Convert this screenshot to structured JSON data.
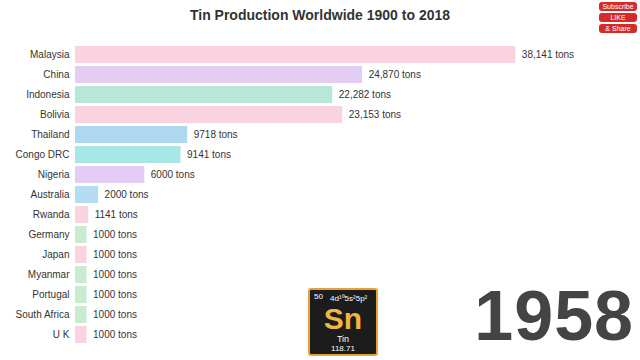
{
  "chart_data": {
    "type": "bar",
    "title": "Tin Production Worldwide 1900 to 2018",
    "orientation": "horizontal",
    "categories": [
      "Malaysia",
      "China",
      "Indonesia",
      "Bolivia",
      "Thailand",
      "Congo DRC",
      "Nigeria",
      "Australia",
      "Rwanda",
      "Germany",
      "Japan",
      "Myanmar",
      "Portugal",
      "South Africa",
      "U K"
    ],
    "values": [
      38141,
      24870,
      22282,
      23153,
      9718,
      9141,
      6000,
      2000,
      1141,
      1000,
      1000,
      1000,
      1000,
      1000,
      1000
    ],
    "value_labels": [
      "38,141 tons",
      "24,870 tons",
      "22,282 tons",
      "23,153 tons",
      "9718 tons",
      "9141 tons",
      "6000 tons",
      "2000 tons",
      "1141 tons",
      "1000 tons",
      "1000 tons",
      "1000 tons",
      "1000 tons",
      "1000 tons",
      "1000 tons"
    ],
    "colors": [
      "#f9d3df",
      "#e3cdf5",
      "#b9e6d6",
      "#f9d3df",
      "#aed8f0",
      "#a9e6e6",
      "#e3cdf5",
      "#b4dcf2",
      "#f9d3df",
      "#c9ecd0",
      "#f9d3df",
      "#c9ecd0",
      "#c9ecd0",
      "#c9ecd0",
      "#f9d3df"
    ],
    "xlim": [
      0,
      44000
    ],
    "tick_labels": "y",
    "data_labels": true,
    "grid": false,
    "annotations": [
      "1958"
    ]
  },
  "element_card": {
    "number": 50,
    "configuration": "4d¹⁰5s²5p²",
    "symbol": "Sn",
    "name": "Tin",
    "mass": 118.71
  },
  "badges": [
    "Subscribe",
    "LIKE",
    "& Share"
  ]
}
